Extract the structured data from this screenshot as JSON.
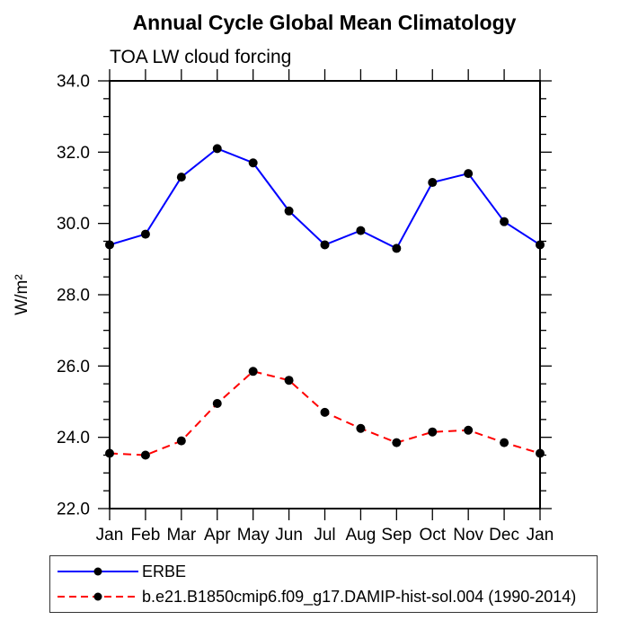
{
  "chart_data": {
    "type": "line",
    "title": "Annual Cycle Global Mean Climatology",
    "subtitle": "TOA LW cloud forcing",
    "ylabel": "W/m²",
    "xlabel": "",
    "categories": [
      "Jan",
      "Feb",
      "Mar",
      "Apr",
      "May",
      "Jun",
      "Jul",
      "Aug",
      "Sep",
      "Oct",
      "Nov",
      "Dec",
      "Jan"
    ],
    "ylim": [
      22.0,
      34.0
    ],
    "ytick_major_step": 2.0,
    "ytick_minor_step": 0.5,
    "ytick_labels": [
      "22.0",
      "24.0",
      "26.0",
      "28.0",
      "30.0",
      "32.0",
      "34.0"
    ],
    "grid": false,
    "legend_position": "bottom-left-box",
    "axis_color": "#000000",
    "series": [
      {
        "name": "ERBE",
        "color": "#0000ff",
        "line_style": "solid",
        "marker": "filled-circle",
        "marker_color": "#000000",
        "values": [
          29.4,
          29.7,
          31.3,
          32.1,
          31.7,
          30.35,
          29.4,
          29.8,
          29.3,
          31.15,
          31.4,
          30.05,
          29.4
        ]
      },
      {
        "name": "b.e21.B1850cmip6.f09_g17.DAMIP-hist-sol.004 (1990-2014)",
        "color": "#ff0000",
        "line_style": "dashed",
        "marker": "filled-circle",
        "marker_color": "#000000",
        "values": [
          23.55,
          23.5,
          23.9,
          24.95,
          25.85,
          25.6,
          24.7,
          24.25,
          23.85,
          24.15,
          24.2,
          23.85,
          23.55
        ]
      }
    ]
  }
}
